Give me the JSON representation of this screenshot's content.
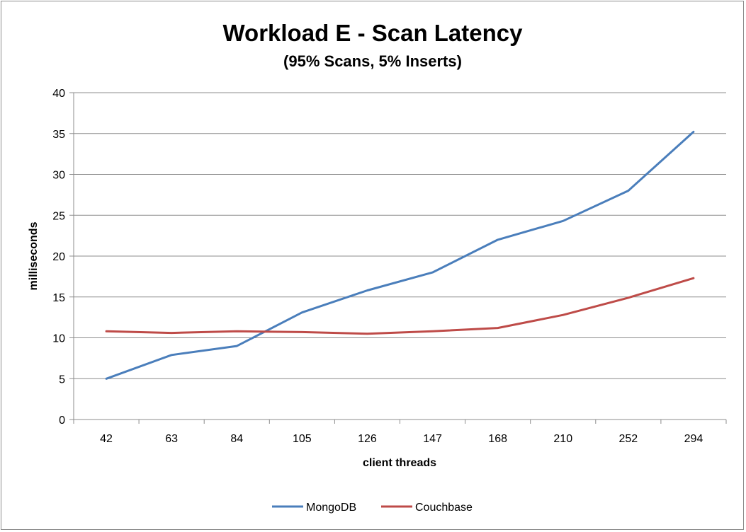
{
  "chart_data": {
    "type": "line",
    "title": "Workload E - Scan Latency",
    "subtitle": "(95% Scans, 5% Inserts)",
    "xlabel": "client threads",
    "ylabel": "milliseconds",
    "categories": [
      "42",
      "63",
      "84",
      "105",
      "126",
      "147",
      "168",
      "210",
      "252",
      "294"
    ],
    "ylim": [
      0,
      40
    ],
    "yticks": [
      0,
      5,
      10,
      15,
      20,
      25,
      30,
      35,
      40
    ],
    "grid": "horizontal",
    "legend_position": "bottom",
    "series": [
      {
        "name": "MongoDB",
        "color": "#4a7ebb",
        "values": [
          5.0,
          7.9,
          9.0,
          13.1,
          15.8,
          18.0,
          22.0,
          24.3,
          28.0,
          35.2
        ]
      },
      {
        "name": "Couchbase",
        "color": "#be4b48",
        "values": [
          10.8,
          10.6,
          10.8,
          10.7,
          10.5,
          10.8,
          11.2,
          12.8,
          14.9,
          17.3
        ]
      }
    ]
  }
}
